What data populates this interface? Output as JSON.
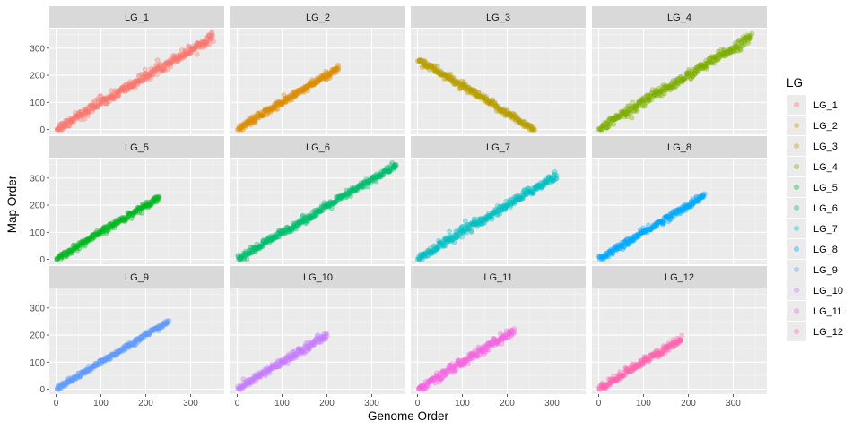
{
  "chart_data": {
    "type": "scatter",
    "xlabel": "Genome Order",
    "ylabel": "Map Order",
    "xlim": [
      -15,
      375
    ],
    "ylim": [
      -18,
      372
    ],
    "x_ticks": [
      0,
      100,
      200,
      300
    ],
    "y_ticks": [
      0,
      100,
      200,
      300
    ],
    "grid": true,
    "legend": {
      "title": "LG",
      "position": "right"
    },
    "facets": [
      {
        "name": "LG_1",
        "color": "#F8766D",
        "n": 350,
        "slope": 0.98,
        "noise": 9,
        "blobs": [
          [
            40,
            110,
            25
          ]
        ]
      },
      {
        "name": "LG_2",
        "color": "#DE8C00",
        "n": 225,
        "slope": 1.0,
        "noise": 7,
        "blobs": []
      },
      {
        "name": "LG_3",
        "color": "#B79F00",
        "n": 260,
        "slope": -1.0,
        "noise": 7,
        "blobs": []
      },
      {
        "name": "LG_4",
        "color": "#7CAE00",
        "n": 340,
        "slope": 1.0,
        "noise": 9,
        "blobs": [
          [
            50,
            140,
            22
          ]
        ]
      },
      {
        "name": "LG_5",
        "color": "#00B81F",
        "n": 230,
        "slope": 1.0,
        "noise": 6,
        "blobs": []
      },
      {
        "name": "LG_6",
        "color": "#00BE6C",
        "n": 355,
        "slope": 0.98,
        "noise": 7,
        "blobs": []
      },
      {
        "name": "LG_7",
        "color": "#00BFC4",
        "n": 310,
        "slope": 1.0,
        "noise": 8,
        "blobs": [
          [
            40,
            110,
            25
          ]
        ]
      },
      {
        "name": "LG_8",
        "color": "#00A9FF",
        "n": 235,
        "slope": 1.0,
        "noise": 6,
        "blobs": []
      },
      {
        "name": "LG_9",
        "color": "#619CFF",
        "n": 250,
        "slope": 1.0,
        "noise": 5,
        "blobs": []
      },
      {
        "name": "LG_10",
        "color": "#C77CFF",
        "n": 200,
        "slope": 1.0,
        "noise": 7,
        "blobs": [
          [
            10,
            30,
            10
          ]
        ]
      },
      {
        "name": "LG_11",
        "color": "#F564E3",
        "n": 215,
        "slope": 1.0,
        "noise": 8,
        "blobs": [
          [
            40,
            100,
            18
          ]
        ]
      },
      {
        "name": "LG_12",
        "color": "#FF64B0",
        "n": 185,
        "slope": 1.0,
        "noise": 7,
        "blobs": [
          [
            50,
            130,
            18
          ]
        ]
      }
    ]
  }
}
